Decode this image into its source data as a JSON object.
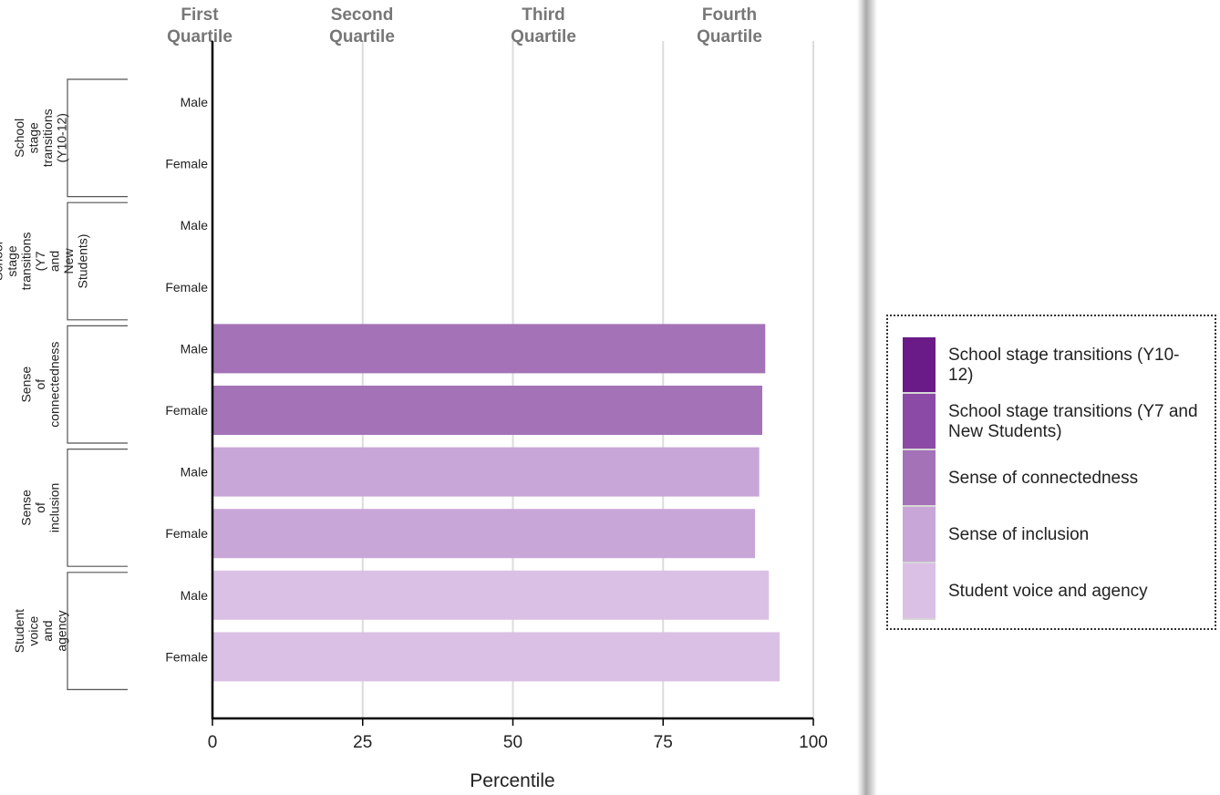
{
  "chart_data": {
    "type": "bar",
    "orientation": "horizontal",
    "xlabel": "Percentile",
    "xlim": [
      0,
      100
    ],
    "xticks": [
      0,
      25,
      50,
      75,
      100
    ],
    "grid": true,
    "quartile_labels": [
      {
        "line1": "First",
        "line2": "Quartile"
      },
      {
        "line1": "Second",
        "line2": "Quartile"
      },
      {
        "line1": "Third",
        "line2": "Quartile"
      },
      {
        "line1": "Fourth",
        "line2": "Quartile"
      }
    ],
    "groups": [
      {
        "name": "School stage transitions (Y10-12)",
        "label_lines": [
          "School",
          "stage",
          "transitions",
          "(Y10-12)"
        ],
        "color": "#6a1b87",
        "bars": [
          {
            "category": "Male",
            "value": null
          },
          {
            "category": "Female",
            "value": null
          }
        ]
      },
      {
        "name": "School stage transitions (Y7 and New Students)",
        "label_lines": [
          "School",
          "stage",
          "transitions",
          "(Y7",
          "and",
          "New",
          "Students)"
        ],
        "color": "#8b4aa5",
        "bars": [
          {
            "category": "Male",
            "value": null
          },
          {
            "category": "Female",
            "value": null
          }
        ]
      },
      {
        "name": "Sense of connectedness",
        "label_lines": [
          "Sense",
          "of",
          "connectedness"
        ],
        "color": "#a372b7",
        "bars": [
          {
            "category": "Male",
            "value": 92
          },
          {
            "category": "Female",
            "value": 91.5
          }
        ]
      },
      {
        "name": "Sense of inclusion",
        "label_lines": [
          "Sense",
          "of",
          "inclusion"
        ],
        "color": "#c9a6d8",
        "bars": [
          {
            "category": "Male",
            "value": 91
          },
          {
            "category": "Female",
            "value": 90.3
          }
        ]
      },
      {
        "name": "Student voice and agency",
        "label_lines": [
          "Student",
          "voice",
          "and",
          "agency"
        ],
        "color": "#dbc0e6",
        "bars": [
          {
            "category": "Male",
            "value": 92.6
          },
          {
            "category": "Female",
            "value": 94.4
          }
        ]
      }
    ],
    "legend": {
      "placement": "right",
      "items": [
        {
          "label": "School stage transitions (Y10-12)",
          "color": "#6a1b87"
        },
        {
          "label": "School stage transitions (Y7 and New Students)",
          "color": "#8b4aa5"
        },
        {
          "label": "Sense of connectedness",
          "color": "#a372b7"
        },
        {
          "label": "Sense of inclusion",
          "color": "#c9a6d8"
        },
        {
          "label": "Student voice and agency",
          "color": "#dbc0e6"
        }
      ]
    }
  }
}
